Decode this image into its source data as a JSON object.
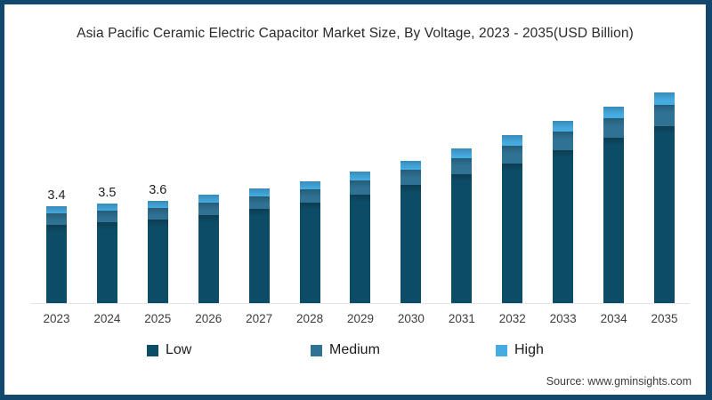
{
  "title": "Asia Pacific Ceramic Electric Capacitor Market Size, By Voltage, 2023 - 2035(USD Billion)",
  "source": "Source: www.gminsights.com",
  "colors": {
    "frame_border": "#12486d",
    "axis_line": "#e3e3e3",
    "low": "#0d4c66",
    "medium": "#2f7294",
    "high": "#45ace2"
  },
  "chart_data": {
    "type": "bar",
    "stacked": true,
    "title": "Asia Pacific Ceramic Electric Capacitor Market Size, By Voltage, 2023 - 2035(USD Billion)",
    "xlabel": "",
    "ylabel": "USD Billion",
    "ylim": [
      0,
      8
    ],
    "grid": false,
    "legend_position": "bottom",
    "categories": [
      "2023",
      "2024",
      "2025",
      "2026",
      "2027",
      "2028",
      "2029",
      "2030",
      "2031",
      "2032",
      "2033",
      "2034",
      "2035"
    ],
    "series": [
      {
        "name": "Low",
        "color": "#0d4c66",
        "values": [
          2.75,
          2.84,
          2.93,
          3.1,
          3.32,
          3.54,
          3.8,
          4.15,
          4.53,
          4.92,
          5.36,
          5.8,
          6.23
        ]
      },
      {
        "name": "Medium",
        "color": "#2f7294",
        "values": [
          0.4,
          0.4,
          0.41,
          0.43,
          0.45,
          0.47,
          0.5,
          0.53,
          0.57,
          0.61,
          0.65,
          0.69,
          0.74
        ]
      },
      {
        "name": "High",
        "color": "#45ace2",
        "values": [
          0.25,
          0.26,
          0.26,
          0.27,
          0.28,
          0.29,
          0.3,
          0.32,
          0.35,
          0.37,
          0.39,
          0.41,
          0.43
        ]
      }
    ],
    "totals": [
      3.4,
      3.5,
      3.6,
      3.8,
      4.05,
      4.3,
      4.6,
      5.0,
      5.45,
      5.9,
      6.4,
      6.9,
      7.4
    ],
    "data_labels": [
      "3.4",
      "3.5",
      "3.6",
      null,
      null,
      null,
      null,
      null,
      null,
      null,
      null,
      null,
      null
    ]
  },
  "legend": {
    "items": [
      {
        "label": "Low"
      },
      {
        "label": "Medium"
      },
      {
        "label": "High"
      }
    ]
  }
}
